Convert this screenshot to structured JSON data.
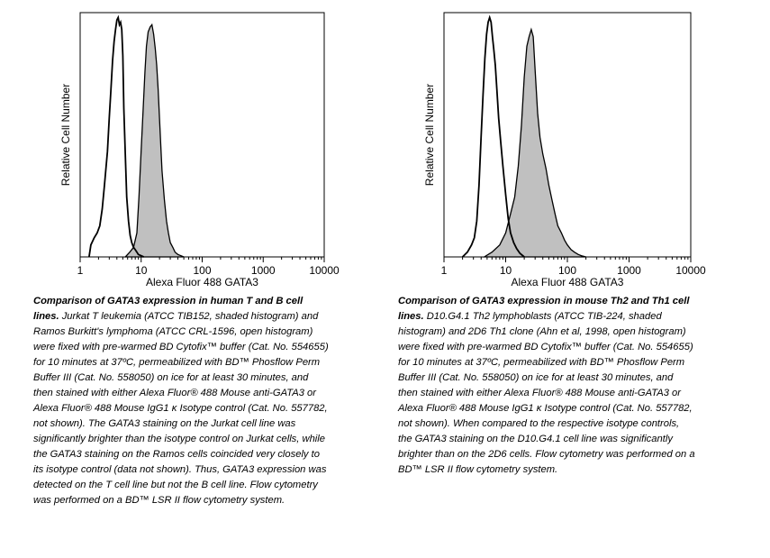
{
  "chart_data": [
    {
      "type": "area",
      "xscale": "log",
      "xlim": [
        1,
        10000
      ],
      "ylim": [
        0,
        1
      ],
      "xlabel": "Alexa Fluor 488 GATA3",
      "ylabel": "Relative Cell Number",
      "xticks": [
        "1",
        "10",
        "100",
        "1000",
        "10000"
      ],
      "series": [
        {
          "style": "open",
          "color": "#000000",
          "x": [
            1.4,
            1.5,
            1.7,
            1.9,
            2.1,
            2.3,
            2.5,
            2.8,
            3.0,
            3.2,
            3.4,
            3.6,
            3.8,
            4.0,
            4.2,
            4.4,
            4.6,
            4.8,
            5.0,
            5.2,
            5.5,
            5.8,
            6.2,
            6.6,
            7.0,
            7.5,
            8.0,
            8.5,
            9.0,
            10,
            11
          ],
          "y": [
            0.0,
            0.05,
            0.08,
            0.1,
            0.13,
            0.2,
            0.3,
            0.44,
            0.58,
            0.7,
            0.82,
            0.9,
            0.95,
            0.99,
            1.0,
            0.97,
            0.98,
            0.95,
            0.84,
            0.62,
            0.42,
            0.25,
            0.15,
            0.09,
            0.06,
            0.04,
            0.03,
            0.02,
            0.01,
            0.005,
            0.0
          ]
        },
        {
          "style": "filled",
          "color": "#c0c0c0",
          "x": [
            5.5,
            6.5,
            7.5,
            8.5,
            9.2,
            10,
            10.8,
            11.5,
            12.2,
            13,
            14,
            15,
            16,
            17,
            18,
            19,
            20,
            21,
            22,
            24,
            26,
            28,
            30,
            33,
            36,
            40,
            45,
            50
          ],
          "y": [
            0.0,
            0.02,
            0.04,
            0.1,
            0.25,
            0.45,
            0.62,
            0.77,
            0.88,
            0.94,
            0.96,
            0.97,
            0.93,
            0.87,
            0.8,
            0.7,
            0.58,
            0.46,
            0.36,
            0.24,
            0.15,
            0.1,
            0.06,
            0.04,
            0.02,
            0.01,
            0.005,
            0.0
          ]
        }
      ]
    },
    {
      "type": "area",
      "xscale": "log",
      "xlim": [
        1,
        10000
      ],
      "ylim": [
        0,
        1
      ],
      "xlabel": "Alexa Fluor 488 GATA3",
      "ylabel": "Relative Cell Number",
      "xticks": [
        "1",
        "10",
        "100",
        "1000",
        "10000"
      ],
      "series": [
        {
          "style": "open",
          "color": "#000000",
          "x": [
            2.0,
            2.4,
            2.8,
            3.1,
            3.4,
            3.7,
            4.0,
            4.3,
            4.6,
            4.9,
            5.2,
            5.5,
            5.8,
            6.1,
            6.4,
            6.8,
            7.2,
            7.7,
            8.3,
            9.0,
            10,
            11,
            12,
            13.5,
            15,
            17,
            20
          ],
          "y": [
            0.0,
            0.02,
            0.05,
            0.08,
            0.15,
            0.3,
            0.5,
            0.68,
            0.83,
            0.93,
            0.98,
            1.0,
            0.98,
            0.92,
            0.87,
            0.8,
            0.7,
            0.58,
            0.48,
            0.38,
            0.26,
            0.16,
            0.1,
            0.06,
            0.035,
            0.015,
            0.0
          ]
        },
        {
          "style": "filled",
          "color": "#c0c0c0",
          "x": [
            4.5,
            6,
            8,
            10,
            12,
            14,
            16,
            18,
            20,
            22,
            24,
            26,
            28,
            30,
            33,
            36,
            40,
            45,
            50,
            56,
            63,
            70,
            80,
            90,
            100,
            115,
            130,
            150,
            170,
            200
          ],
          "y": [
            0.0,
            0.02,
            0.05,
            0.1,
            0.18,
            0.25,
            0.38,
            0.55,
            0.75,
            0.88,
            0.92,
            0.95,
            0.92,
            0.78,
            0.6,
            0.5,
            0.43,
            0.37,
            0.3,
            0.24,
            0.18,
            0.13,
            0.1,
            0.07,
            0.05,
            0.03,
            0.02,
            0.01,
            0.005,
            0.0
          ]
        }
      ]
    }
  ],
  "captions": {
    "left": {
      "title": "Comparison of GATA3 expression in human T and B cell lines.",
      "body": " Jurkat T leukemia (ATCC TIB152, shaded histogram) and Ramos Burkitt's lymphoma (ATCC CRL-1596, open histogram) were fixed with pre-warmed BD Cytofix™ buffer (Cat. No. 554655) for 10 minutes at 37ºC, permeabilized with BD™ Phosflow Perm Buffer III (Cat. No. 558050) on ice for at least 30 minutes, and then stained with either Alexa Fluor® 488 Mouse anti-GATA3 or Alexa Fluor® 488 Mouse IgG1 κ Isotype control (Cat. No. 557782, not shown). The GATA3 staining on the Jurkat cell line was significantly brighter than the isotype control on Jurkat cells, while the GATA3 staining on the Ramos cells coincided very closely to its isotype control (data not shown). Thus, GATA3 expression was detected on the T cell line but not the B cell line. Flow cytometry was performed on a BD™ LSR II flow cytometry system."
    },
    "right": {
      "title": "Comparison of GATA3 expression in mouse Th2 and Th1 cell lines.",
      "body": " D10.G4.1 Th2 lymphoblasts (ATCC TIB-224, shaded histogram) and 2D6 Th1 clone (Ahn et al, 1998, open histogram) were fixed with pre-warmed BD Cytofix™ buffer (Cat. No. 554655) for 10 minutes at 37ºC, permeabilized with BD™ Phosflow Perm Buffer III (Cat. No. 558050) on ice for at least 30 minutes, and then stained with either Alexa Fluor® 488 Mouse anti-GATA3 or Alexa Fluor® 488 Mouse IgG1 κ Isotype control (Cat. No. 557782, not shown). When compared to the respective isotype controls, the GATA3 staining on the D10.G4.1 cell line was significantly brighter than on the 2D6 cells. Flow cytometry was performed on a BD™ LSR II flow cytometry system."
    }
  }
}
